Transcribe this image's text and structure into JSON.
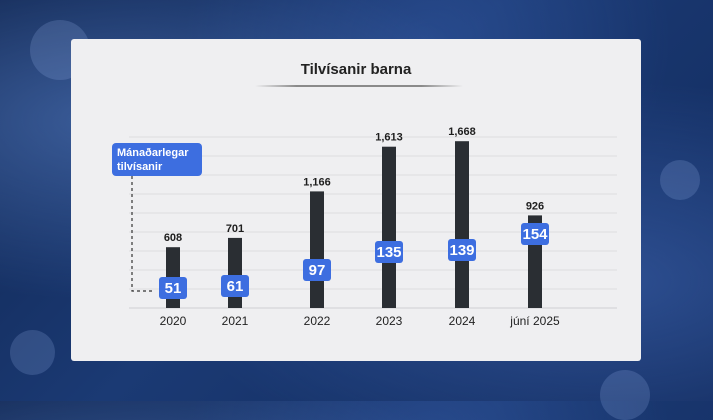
{
  "chart_data": {
    "type": "bar",
    "title": "Tilvísanir barna",
    "categories": [
      "2020",
      "2021",
      "2022",
      "2023",
      "2024",
      "júní 2025"
    ],
    "series": [
      {
        "values": [
          608,
          701,
          1166,
          1613,
          1668,
          926
        ]
      },
      {
        "values": [
          51,
          61,
          97,
          135,
          139,
          154
        ]
      }
    ],
    "annotation": {
      "line1": "Mánaðarlegar",
      "line2": "tilvísanir"
    },
    "ylim": [
      0,
      1700
    ],
    "grid": true,
    "bar_color": "#2a2e33",
    "label_box_color": "#3d6ee0"
  }
}
